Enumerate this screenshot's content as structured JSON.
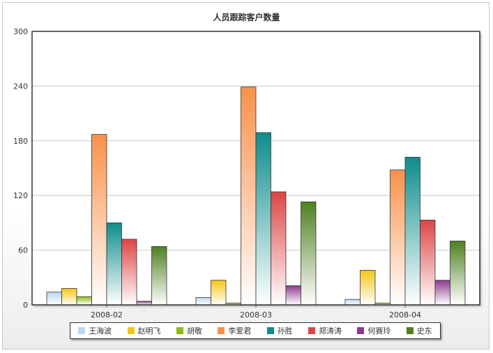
{
  "chart_data": {
    "type": "bar",
    "title": "人员跟踪客户数量",
    "categories": [
      "2008-02",
      "2008-03",
      "2008-04"
    ],
    "ylim": [
      0,
      300
    ],
    "yticks": [
      0,
      60,
      120,
      180,
      240,
      300
    ],
    "grid": true,
    "legend_position": "bottom",
    "series": [
      {
        "name": "王海波",
        "color": "#b8d8f4",
        "values": [
          14,
          8,
          6
        ]
      },
      {
        "name": "赵明飞",
        "color": "#f4c518",
        "values": [
          18,
          27,
          38
        ]
      },
      {
        "name": "胡敬",
        "color": "#8cbd1a",
        "values": [
          9,
          2,
          2
        ]
      },
      {
        "name": "李爱君",
        "color": "#f8914a",
        "values": [
          187,
          239,
          148
        ]
      },
      {
        "name": "孙胜",
        "color": "#0e8c8c",
        "values": [
          90,
          189,
          162
        ]
      },
      {
        "name": "郑涛涛",
        "color": "#dc4545",
        "values": [
          72,
          124,
          93
        ]
      },
      {
        "name": "何赛玲",
        "color": "#8c3a8c",
        "values": [
          4,
          21,
          27
        ]
      },
      {
        "name": "史东",
        "color": "#4e8020",
        "values": [
          64,
          113,
          70
        ]
      }
    ]
  }
}
